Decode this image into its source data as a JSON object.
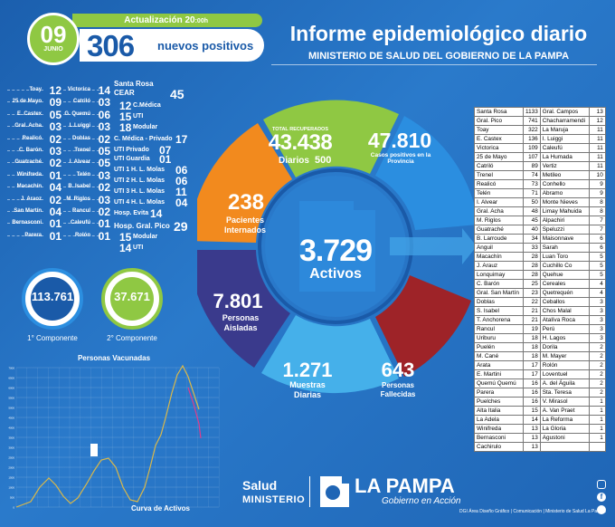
{
  "header": {
    "day": "09",
    "month": "JUNIO",
    "update_label": "Actualización 20",
    "update_time": ":00h",
    "new_positives_count": "306",
    "new_positives_label": "nuevos positivos",
    "title": "Informe epidemiológico diario",
    "subtitle": "MINISTERIO DE SALUD DEL GOBIERNO DE LA PAMPA"
  },
  "localities_left": [
    {
      "name": "Toay",
      "value": "12"
    },
    {
      "name": "25 de Mayo",
      "value": "09"
    },
    {
      "name": "E. Castex",
      "value": "05"
    },
    {
      "name": "Gral. Acha",
      "value": "03"
    },
    {
      "name": "Realicó",
      "value": "02"
    },
    {
      "name": "C. Barón",
      "value": "03"
    },
    {
      "name": "Guatraché",
      "value": "02"
    },
    {
      "name": "Winifreda",
      "value": "01"
    },
    {
      "name": "Macachín",
      "value": "04"
    },
    {
      "name": "J. Araoz",
      "value": "02"
    },
    {
      "name": "San Martín",
      "value": "04"
    },
    {
      "name": "Bernasconi",
      "value": "01"
    },
    {
      "name": "Parera",
      "value": "01"
    }
  ],
  "localities_mid": [
    {
      "name": "Victorica",
      "value": "14"
    },
    {
      "name": "Catriló",
      "value": "03"
    },
    {
      "name": "G. Quemú",
      "value": "06"
    },
    {
      "name": "L.Luiggi",
      "value": "03"
    },
    {
      "name": "Doblas",
      "value": "02"
    },
    {
      "name": "Trenel",
      "value": "05"
    },
    {
      "name": "I. Alvear",
      "value": "05"
    },
    {
      "name": "Telén",
      "value": "03"
    },
    {
      "name": "B. Isabel",
      "value": "02"
    },
    {
      "name": "M. Riglos",
      "value": "03"
    },
    {
      "name": "Rancul",
      "value": "02"
    },
    {
      "name": "Caleufú",
      "value": "01"
    },
    {
      "name": "Rolón",
      "value": "01"
    }
  ],
  "hospitals": {
    "santa_rosa": "Santa Rosa",
    "cear": "CEAR",
    "cear_value": "45",
    "cm": "C.Médica",
    "cm_value": "12",
    "uti": "UTI",
    "uti_value": "15",
    "modular": "Modular",
    "modular_value": "18",
    "cm_privado": "C. Médica - Privado",
    "cm_privado_value": "17",
    "uti_privado": "UTI Privado",
    "uti_privado_value": "07",
    "uti_guardia": "UTI Guardia",
    "uti_guardia_value": "01",
    "uti1": "UTI 1 H. L. Molas",
    "uti1_value": "06",
    "uti2": "UTI 2 H. L. Molas",
    "uti2_value": "06",
    "uti3": "UTI 3 H. L. Molas",
    "uti3_value": "11",
    "uti4": "UTI 4 H. L. Molas",
    "uti4_value": "04",
    "evita": "Hosp. Evita",
    "evita_value": "14",
    "gp": "Hosp. Gral. Pico",
    "gp_value": "29",
    "gp_mod": "Modular",
    "gp_mod_value": "15",
    "gp_uti": "UTI",
    "gp_uti_value": "14"
  },
  "components": {
    "first_value": "113.761",
    "first_label": "1° Componente",
    "second_value": "37.671",
    "second_label": "2° Componente"
  },
  "wheel": {
    "recovered_label": "TOTAL RECUPERADOS",
    "recovered_value": "43.438",
    "recovered_daily_label": "Diarios",
    "recovered_daily_value": "500",
    "cases_value": "47.810",
    "cases_label": "Casos positivos en la Provincia",
    "hospitalized_value": "238",
    "hospitalized_label": "Pacientes Internados",
    "active_value": "3.729",
    "active_label": "Activos",
    "isolated_value": "7.801",
    "isolated_label": "Personas Aisladas",
    "samples_value": "1.271",
    "samples_label": "Muestras Diarias",
    "deaths_value": "643",
    "deaths_label": "Personas Fallecidas"
  },
  "distribution_table": [
    [
      "Santa Rosa",
      "1133",
      "Gral. Campos",
      "13"
    ],
    [
      "Gral. Pico",
      "741",
      "Chacharramendi",
      "12"
    ],
    [
      "Toay",
      "322",
      "La Maruja",
      "11"
    ],
    [
      "E. Castex",
      "136",
      "I. Luiggi",
      "11"
    ],
    [
      "Victorica",
      "109",
      "Caleufú",
      "11"
    ],
    [
      "25 de Mayo",
      "107",
      "La Humada",
      "11"
    ],
    [
      "Catriló",
      "89",
      "Vertiz",
      "11"
    ],
    [
      "Trenel",
      "74",
      "Metileo",
      "10"
    ],
    [
      "Realicó",
      "73",
      "Conhello",
      "9"
    ],
    [
      "Telén",
      "71",
      "Abramo",
      "9"
    ],
    [
      "I. Alvear",
      "50",
      "Monte Nieves",
      "8"
    ],
    [
      "Gral. Acha",
      "48",
      "Limay Mahuida",
      "8"
    ],
    [
      "M. Riglos",
      "45",
      "Alpachiri",
      "7"
    ],
    [
      "Guatraché",
      "40",
      "Speluzzi",
      "7"
    ],
    [
      "B. Larroude",
      "34",
      "Maisonnave",
      "6"
    ],
    [
      "Anguil",
      "33",
      "Sarah",
      "6"
    ],
    [
      "Macachín",
      "28",
      "Luan Toro",
      "5"
    ],
    [
      "J. Arauz",
      "28",
      "Cuchillo Co",
      "5"
    ],
    [
      "Lonquimay",
      "28",
      "Quehue",
      "5"
    ],
    [
      "C. Barón",
      "25",
      "Cereales",
      "4"
    ],
    [
      "Gral. San Martín",
      "23",
      "Quetrequén",
      "4"
    ],
    [
      "Doblas",
      "22",
      "Ceballos",
      "3"
    ],
    [
      "S. Isabel",
      "21",
      "Chos Malal",
      "3"
    ],
    [
      "T. Anchorena",
      "21",
      "Atalíva Roca",
      "3"
    ],
    [
      "Rancul",
      "19",
      "Perú",
      "3"
    ],
    [
      "Uriburu",
      "18",
      "H. Lagos",
      "3"
    ],
    [
      "Puelén",
      "18",
      "Dorila",
      "2"
    ],
    [
      "M. Cané",
      "18",
      "M. Mayer",
      "2"
    ],
    [
      "Arata",
      "17",
      "Rolón",
      "2"
    ],
    [
      "E. Martini",
      "17",
      "Loventuel",
      "2"
    ],
    [
      "Quemú Quemú",
      "16",
      "A. del Águila",
      "2"
    ],
    [
      "Parera",
      "16",
      "Sta. Teresa",
      "2"
    ],
    [
      "Puelches",
      "16",
      "V. Mirasol",
      "1"
    ],
    [
      "Alta Italia",
      "15",
      "A. Van Praet",
      "1"
    ],
    [
      "La Adela",
      "14",
      "La Reforma",
      "1"
    ],
    [
      "Winifreda",
      "13",
      "La Gloria",
      "1"
    ],
    [
      "Bernasconi",
      "13",
      "Agustoni",
      "1"
    ],
    [
      "Cachirulo",
      "13",
      "",
      ""
    ]
  ],
  "chart_data": {
    "type": "line",
    "series": [
      {
        "name": "Personas Vacunadas",
        "color": "#d9b84a"
      },
      {
        "name": "Curva de Activos",
        "color": "#ffffff"
      }
    ],
    "title": "Personas Vacunadas",
    "xlabel": "Curva de Activos",
    "y_ticks": [
      "7000",
      "6500",
      "6000",
      "5500",
      "5000",
      "4500",
      "4000",
      "3500",
      "3000",
      "2500",
      "2000",
      "1500",
      "1000",
      "500",
      "0"
    ]
  },
  "footer": {
    "salud": "Salud",
    "ministerio": "MINISTERIO",
    "la_pampa": "LA PAMPA",
    "gobierno": "Gobierno en Acción",
    "credit": "DGI Área Diseño Gráfico | Comunicación | Ministerio de Salud La Pampa"
  },
  "colors": {
    "green": "#8fc843",
    "orange": "#f28a1e",
    "blue": "#2b8ee0",
    "purple": "#3a3a8c",
    "light_blue": "#45b0ea",
    "red": "#9e2328"
  }
}
